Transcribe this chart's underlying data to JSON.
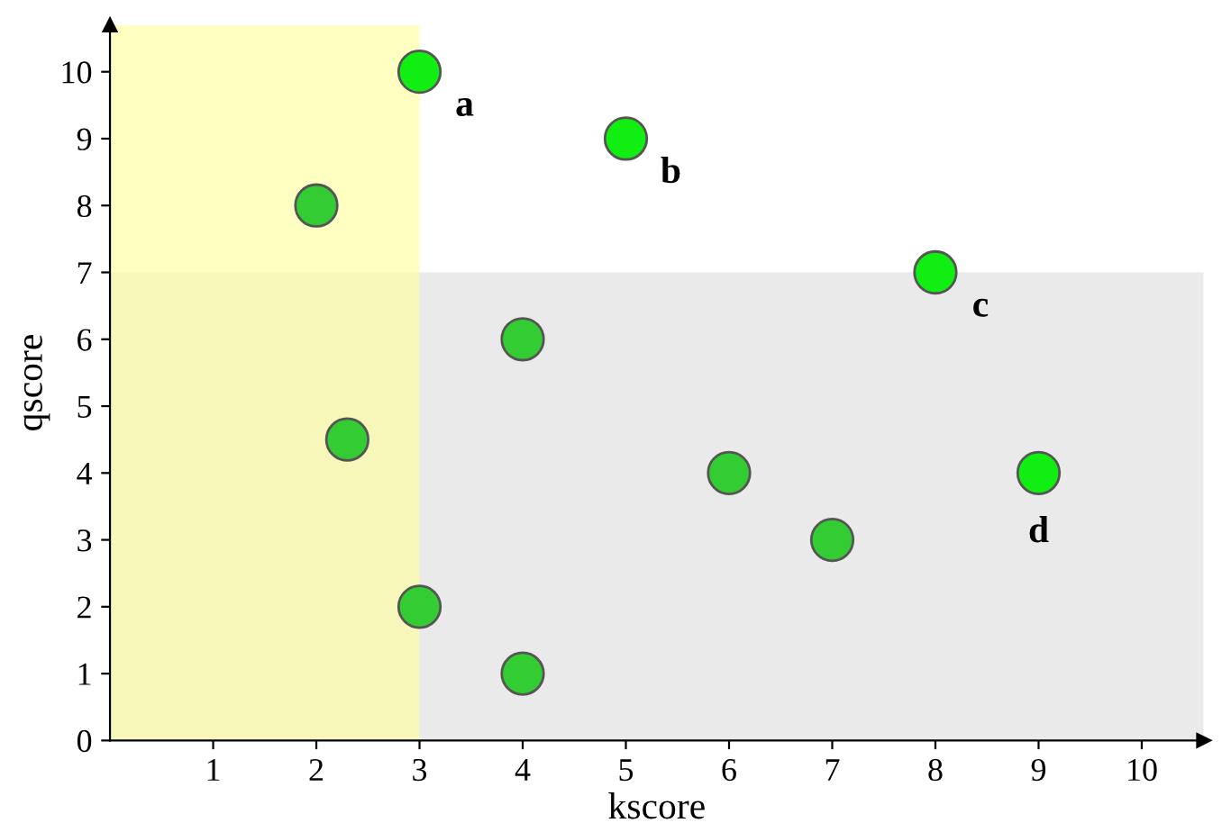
{
  "chart_data": {
    "type": "scatter",
    "xlabel": "kscore",
    "ylabel": "qscore",
    "x": [
      3,
      5,
      8,
      9,
      2,
      4,
      2.3,
      6,
      7,
      3,
      4
    ],
    "values": [
      10,
      9,
      7,
      4,
      8,
      6,
      4.5,
      4,
      3,
      2,
      1
    ],
    "colors": [
      "#11ee11",
      "#11ee11",
      "#11ee11",
      "#11ee11",
      "#33cc33",
      "#33cc33",
      "#33cc33",
      "#33cc33",
      "#33cc33",
      "#33cc33",
      "#33cc33"
    ],
    "xlim": [
      0,
      10.6
    ],
    "ylim": [
      0,
      10.7
    ],
    "xticks": [
      1,
      2,
      3,
      4,
      5,
      6,
      7,
      8,
      9,
      10
    ],
    "yticks": [
      0,
      1,
      2,
      3,
      4,
      5,
      6,
      7,
      8,
      9,
      10
    ],
    "bands": [
      {
        "axis": "y",
        "from": 0,
        "to": 7,
        "color": "#dcdcdc"
      },
      {
        "axis": "x",
        "from": 0,
        "to": 3,
        "color": "#ffff99"
      }
    ],
    "annotations": [
      {
        "text": "a",
        "x": 3,
        "y": 10
      },
      {
        "text": "b",
        "x": 5,
        "y": 9
      },
      {
        "text": "c",
        "x": 8,
        "y": 7
      },
      {
        "text": "d",
        "x": 9,
        "y": 4
      }
    ],
    "grid": false,
    "legend": false,
    "marker": "circle"
  }
}
